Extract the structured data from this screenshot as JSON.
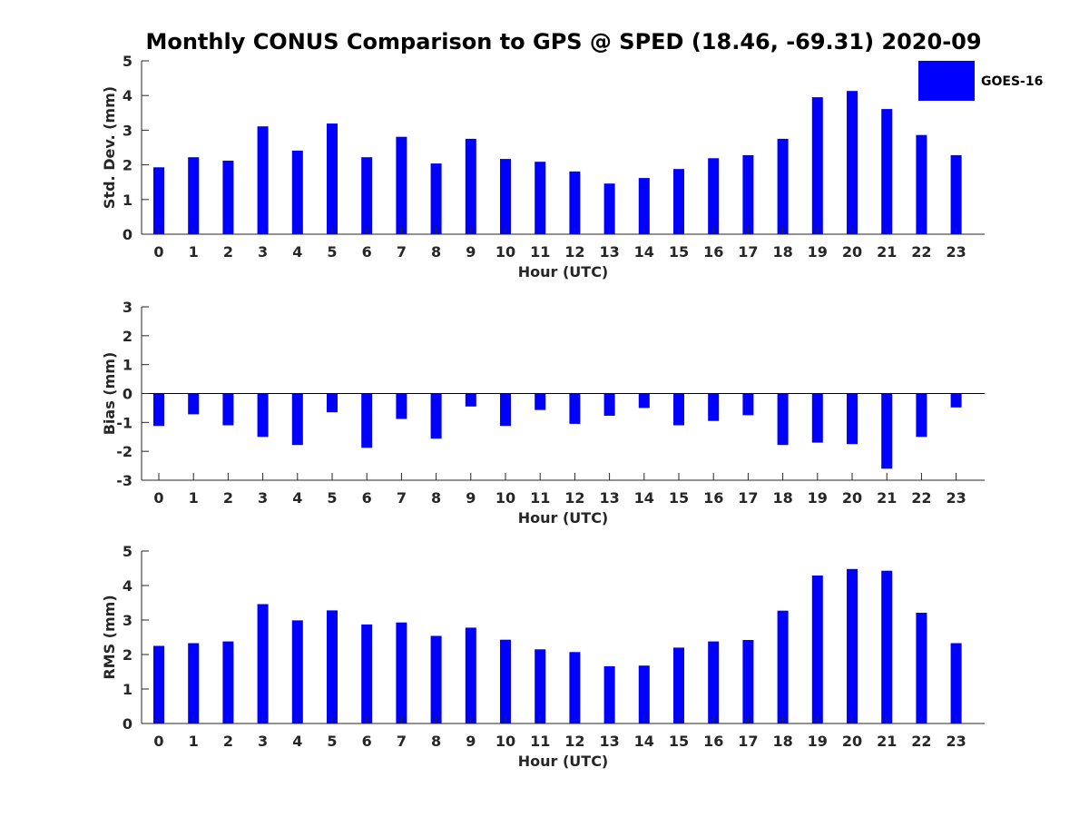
{
  "title": "Monthly CONUS Comparison to GPS @ SPED (18.46, -69.31) 2020-09",
  "legend": {
    "label": "GOES-16",
    "color": "#0000ff",
    "placement": "top-right"
  },
  "chart_data": [
    {
      "type": "bar",
      "name": "std-dev",
      "xlabel": "Hour (UTC)",
      "ylabel": "Std. Dev. (mm)",
      "ylim": [
        0,
        5
      ],
      "yticks": [
        0,
        1,
        2,
        3,
        4,
        5
      ],
      "categories": [
        "0",
        "1",
        "2",
        "3",
        "4",
        "5",
        "6",
        "7",
        "8",
        "9",
        "10",
        "11",
        "12",
        "13",
        "14",
        "15",
        "16",
        "17",
        "18",
        "19",
        "20",
        "21",
        "22",
        "23"
      ],
      "series": [
        {
          "name": "GOES-16",
          "color": "#0000ff",
          "values": [
            1.93,
            2.22,
            2.12,
            3.11,
            2.41,
            3.19,
            2.22,
            2.81,
            2.04,
            2.75,
            2.17,
            2.09,
            1.81,
            1.46,
            1.62,
            1.88,
            2.19,
            2.28,
            2.75,
            3.95,
            4.13,
            3.61,
            2.86,
            2.28
          ]
        }
      ],
      "grid": false
    },
    {
      "type": "bar",
      "name": "bias",
      "xlabel": "Hour (UTC)",
      "ylabel": "Bias (mm)",
      "ylim": [
        -3,
        3
      ],
      "yticks": [
        -3,
        -2,
        -1,
        0,
        1,
        2,
        3
      ],
      "categories": [
        "0",
        "1",
        "2",
        "3",
        "4",
        "5",
        "6",
        "7",
        "8",
        "9",
        "10",
        "11",
        "12",
        "13",
        "14",
        "15",
        "16",
        "17",
        "18",
        "19",
        "20",
        "21",
        "22",
        "23"
      ],
      "series": [
        {
          "name": "GOES-16",
          "color": "#0000ff",
          "values": [
            -1.12,
            -0.72,
            -1.1,
            -1.5,
            -1.78,
            -0.65,
            -1.88,
            -0.88,
            -1.56,
            -0.45,
            -1.12,
            -0.57,
            -1.05,
            -0.77,
            -0.5,
            -1.1,
            -0.95,
            -0.75,
            -1.78,
            -1.7,
            -1.75,
            -2.6,
            -1.5,
            -0.48
          ]
        }
      ],
      "grid": false
    },
    {
      "type": "bar",
      "name": "rms",
      "xlabel": "Hour (UTC)",
      "ylabel": "RMS (mm)",
      "ylim": [
        0,
        5
      ],
      "yticks": [
        0,
        1,
        2,
        3,
        4,
        5
      ],
      "categories": [
        "0",
        "1",
        "2",
        "3",
        "4",
        "5",
        "6",
        "7",
        "8",
        "9",
        "10",
        "11",
        "12",
        "13",
        "14",
        "15",
        "16",
        "17",
        "18",
        "19",
        "20",
        "21",
        "22",
        "23"
      ],
      "series": [
        {
          "name": "GOES-16",
          "color": "#0000ff",
          "values": [
            2.25,
            2.33,
            2.38,
            3.46,
            2.99,
            3.28,
            2.87,
            2.93,
            2.54,
            2.78,
            2.43,
            2.15,
            2.07,
            1.66,
            1.68,
            2.2,
            2.38,
            2.42,
            3.27,
            4.29,
            4.48,
            4.43,
            3.21,
            2.33
          ]
        }
      ],
      "grid": false
    }
  ]
}
